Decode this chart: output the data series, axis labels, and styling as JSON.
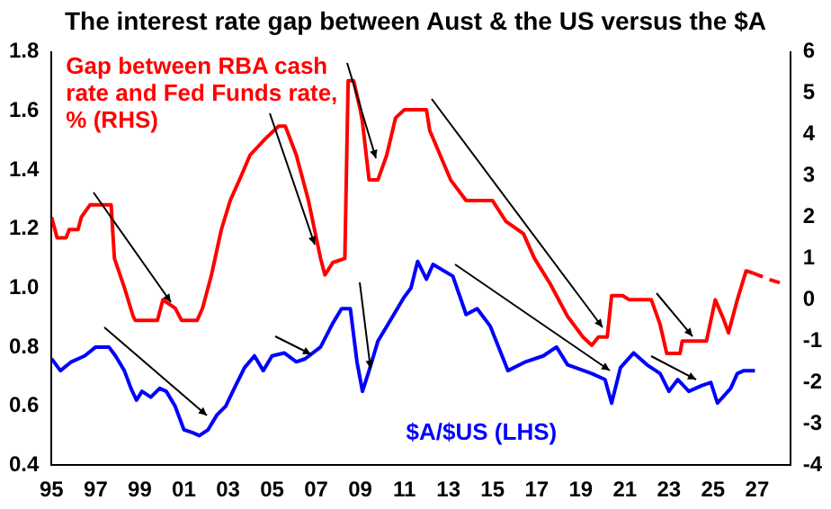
{
  "chart_data": {
    "type": "line",
    "title": "The interest rate gap between Aust & the US versus the $A",
    "xlim": [
      1995,
      2028.5
    ],
    "xticks": [
      {
        "value": 1995,
        "label": "95"
      },
      {
        "value": 1997,
        "label": "97"
      },
      {
        "value": 1999,
        "label": "99"
      },
      {
        "value": 2001,
        "label": "01"
      },
      {
        "value": 2003,
        "label": "03"
      },
      {
        "value": 2005,
        "label": "05"
      },
      {
        "value": 2007,
        "label": "07"
      },
      {
        "value": 2009,
        "label": "09"
      },
      {
        "value": 2011,
        "label": "11"
      },
      {
        "value": 2013,
        "label": "13"
      },
      {
        "value": 2015,
        "label": "15"
      },
      {
        "value": 2017,
        "label": "17"
      },
      {
        "value": 2019,
        "label": "19"
      },
      {
        "value": 2021,
        "label": "21"
      },
      {
        "value": 2023,
        "label": "23"
      },
      {
        "value": 2025,
        "label": "25"
      },
      {
        "value": 2027,
        "label": "27"
      }
    ],
    "ylim": [
      0.4,
      1.8
    ],
    "yticks": [
      {
        "value": 0.4,
        "label": "0.4"
      },
      {
        "value": 0.6,
        "label": "0.6"
      },
      {
        "value": 0.8,
        "label": "0.8"
      },
      {
        "value": 1,
        "label": "1.0"
      },
      {
        "value": 1.2,
        "label": "1.2"
      },
      {
        "value": 1.4,
        "label": "1.4"
      },
      {
        "value": 1.6,
        "label": "1.6"
      },
      {
        "value": 1.8,
        "label": "1.8"
      }
    ],
    "y2lim": [
      -4,
      6
    ],
    "y2ticks": [
      -4,
      -3,
      -2,
      -1,
      0,
      1,
      2,
      3,
      4,
      5,
      6
    ],
    "grid": false,
    "legend": false,
    "marker": "none",
    "series": [
      {
        "name": "Gap between RBA cash rate and Fed Funds rate, % (RHS)",
        "color": "#ff0000",
        "axis": "y2",
        "line_style": "solid",
        "x": [
          1995,
          1995.25,
          1995.66,
          1995.8,
          1996.2,
          1996.35,
          1996.75,
          1997.7,
          1997.85,
          1998.3,
          1998.7,
          1998.8,
          1999.8,
          2000.05,
          2000.6,
          2000.9,
          2001.6,
          2001.85,
          2002.25,
          2002.7,
          2003.1,
          2003.6,
          2004,
          2004.7,
          2005.3,
          2005.6,
          2006.1,
          2006.65,
          2007.2,
          2007.4,
          2007.75,
          2008.3,
          2008.45,
          2008.7,
          2009,
          2009.1,
          2009.4,
          2009.8,
          2010.2,
          2010.6,
          2011,
          2012,
          2012.15,
          2012.7,
          2013.1,
          2013.8,
          2015,
          2015.6,
          2016.4,
          2016.9,
          2017.6,
          2018.4,
          2019.1,
          2019.5,
          2019.8,
          2020.2,
          2020.4,
          2020.9,
          2021.2,
          2022.2,
          2022.6,
          2022.9,
          2023.5,
          2023.6,
          2024.7,
          2025.1,
          2025.5,
          2025.7,
          2026.1,
          2026.5,
          2026.8
        ],
        "values": [
          2.0,
          1.5,
          1.5,
          1.7,
          1.7,
          2.0,
          2.3,
          2.3,
          1.0,
          0.3,
          -0.4,
          -0.5,
          -0.5,
          0,
          -0.2,
          -0.5,
          -0.5,
          -0.2,
          0.6,
          1.7,
          2.4,
          3.0,
          3.5,
          3.9,
          4.2,
          4.2,
          3.5,
          2.4,
          1.0,
          0.6,
          0.9,
          1.0,
          5.3,
          5.3,
          4.6,
          4.3,
          2.9,
          2.9,
          3.5,
          4.4,
          4.6,
          4.6,
          4.1,
          3.4,
          2.9,
          2.4,
          2.4,
          1.9,
          1.6,
          1.0,
          0.4,
          -0.4,
          -0.9,
          -1.1,
          -0.9,
          -0.9,
          0.1,
          0.1,
          0,
          0,
          -0.6,
          -1.3,
          -1.3,
          -1.0,
          -1.0,
          0,
          -0.5,
          -0.8,
          0,
          0.7,
          0.65
        ]
      },
      {
        "color": "#ff0000",
        "axis": "y2",
        "line_style": "dashed",
        "x": [
          2026.8,
          2027.5,
          2028.1
        ],
        "values": [
          0.65,
          0.5,
          0.4
        ]
      },
      {
        "name": "$A/$US (LHS)",
        "color": "#0000ff",
        "axis": "y",
        "line_style": "solid",
        "x": [
          1995,
          1995.4,
          1995.9,
          1996.5,
          1997,
          1997.6,
          1997.9,
          1998.3,
          1998.6,
          1998.85,
          1999.1,
          1999.5,
          1999.9,
          2000.2,
          2000.6,
          2001,
          2001.4,
          2001.7,
          2002.1,
          2002.5,
          2002.9,
          2003.35,
          2003.75,
          2004.2,
          2004.6,
          2005,
          2005.55,
          2006.1,
          2006.5,
          2007.2,
          2007.75,
          2008.15,
          2008.55,
          2008.85,
          2009.1,
          2009.4,
          2009.8,
          2010.2,
          2010.6,
          2011,
          2011.3,
          2011.6,
          2012,
          2012.3,
          2013.2,
          2013.8,
          2014.3,
          2014.9,
          2015.7,
          2016.5,
          2017.3,
          2017.9,
          2018.4,
          2019.5,
          2020.1,
          2020.4,
          2020.8,
          2021.4,
          2022,
          2022.6,
          2023,
          2023.4,
          2023.9,
          2024.5,
          2024.9,
          2025.2,
          2025.8,
          2026.1,
          2026.4,
          2026.9
        ],
        "values": [
          0.76,
          0.72,
          0.75,
          0.77,
          0.8,
          0.8,
          0.77,
          0.72,
          0.66,
          0.62,
          0.65,
          0.63,
          0.66,
          0.65,
          0.6,
          0.52,
          0.51,
          0.5,
          0.52,
          0.57,
          0.6,
          0.67,
          0.73,
          0.77,
          0.72,
          0.77,
          0.78,
          0.75,
          0.76,
          0.8,
          0.88,
          0.93,
          0.93,
          0.75,
          0.65,
          0.72,
          0.82,
          0.87,
          0.92,
          0.97,
          1.0,
          1.09,
          1.03,
          1.08,
          1.04,
          0.91,
          0.93,
          0.87,
          0.72,
          0.75,
          0.77,
          0.8,
          0.74,
          0.71,
          0.69,
          0.61,
          0.73,
          0.78,
          0.74,
          0.71,
          0.65,
          0.69,
          0.65,
          0.67,
          0.68,
          0.61,
          0.66,
          0.71,
          0.72,
          0.72
        ]
      }
    ]
  }
}
